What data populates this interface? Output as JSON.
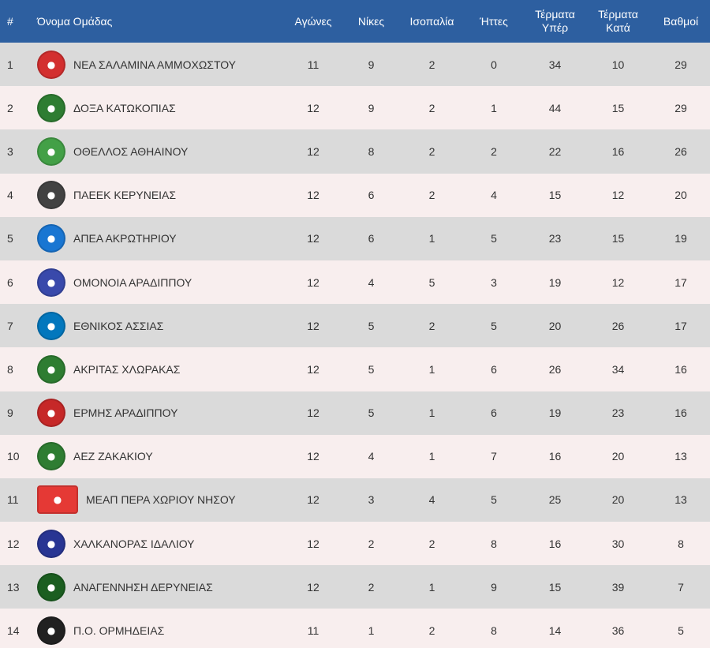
{
  "header": {
    "rank": "#",
    "team": "Όνομα Ομάδας",
    "played": "Αγώνες",
    "wins": "Νίκες",
    "draws": "Ισοπαλία",
    "losses": "Ήττες",
    "goals_for_line1": "Τέρματα",
    "goals_for_line2": "Υπέρ",
    "goals_against_line1": "Τέρματα",
    "goals_against_line2": "Κατά",
    "points": "Βαθμοί"
  },
  "rows": [
    {
      "rank": "1",
      "team": "ΝΕΑ ΣΑΛΑΜΙΝΑ ΑΜΜΟΧΩΣΤΟΥ",
      "logo_icon": "nea-salamina-crest-icon",
      "logo_color": "#d32f2f",
      "played": "11",
      "wins": "9",
      "draws": "2",
      "losses": "0",
      "gf": "34",
      "ga": "10",
      "pts": "29"
    },
    {
      "rank": "2",
      "team": "ΔΟΞΑ ΚΑΤΩΚΟΠΙΑΣ",
      "logo_icon": "doxa-crest-icon",
      "logo_color": "#2e7d32",
      "played": "12",
      "wins": "9",
      "draws": "2",
      "losses": "1",
      "gf": "44",
      "ga": "15",
      "pts": "29"
    },
    {
      "rank": "3",
      "team": "ΟΘΕΛΛΟΣ ΑΘΗΑΙΝΟΥ",
      "logo_icon": "othellos-crest-icon",
      "logo_color": "#43a047",
      "played": "12",
      "wins": "8",
      "draws": "2",
      "losses": "2",
      "gf": "22",
      "ga": "16",
      "pts": "26"
    },
    {
      "rank": "4",
      "team": "ΠΑΕΕΚ ΚΕΡΥΝΕΙΑΣ",
      "logo_icon": "paeek-crest-icon",
      "logo_color": "#424242",
      "played": "12",
      "wins": "6",
      "draws": "2",
      "losses": "4",
      "gf": "15",
      "ga": "12",
      "pts": "20"
    },
    {
      "rank": "5",
      "team": "ΑΠΕΑ ΑΚΡΩΤΗΡΙΟΥ",
      "logo_icon": "apea-crest-icon",
      "logo_color": "#1976d2",
      "played": "12",
      "wins": "6",
      "draws": "1",
      "losses": "5",
      "gf": "23",
      "ga": "15",
      "pts": "19"
    },
    {
      "rank": "6",
      "team": "ΟΜΟΝΟΙΑ ΑΡΑΔΙΠΠΟΥ",
      "logo_icon": "omonoia-crest-icon",
      "logo_color": "#3949ab",
      "played": "12",
      "wins": "4",
      "draws": "5",
      "losses": "3",
      "gf": "19",
      "ga": "12",
      "pts": "17"
    },
    {
      "rank": "7",
      "team": "ΕΘΝΙΚΟΣ ΑΣΣΙΑΣ",
      "logo_icon": "ethnikos-crest-icon",
      "logo_color": "#0277bd",
      "played": "12",
      "wins": "5",
      "draws": "2",
      "losses": "5",
      "gf": "20",
      "ga": "26",
      "pts": "17"
    },
    {
      "rank": "8",
      "team": "ΑΚΡΙΤΑΣ ΧΛΩΡΑΚΑΣ",
      "logo_icon": "akritas-crest-icon",
      "logo_color": "#2e7d32",
      "played": "12",
      "wins": "5",
      "draws": "1",
      "losses": "6",
      "gf": "26",
      "ga": "34",
      "pts": "16"
    },
    {
      "rank": "9",
      "team": "ΕΡΜΗΣ ΑΡΑΔΙΠΠΟΥ",
      "logo_icon": "ermis-crest-icon",
      "logo_color": "#c62828",
      "played": "12",
      "wins": "5",
      "draws": "1",
      "losses": "6",
      "gf": "19",
      "ga": "23",
      "pts": "16"
    },
    {
      "rank": "10",
      "team": "ΑΕΖ ΖΑΚΑΚΙΟΥ",
      "logo_icon": "aez-crest-icon",
      "logo_color": "#2e7d32",
      "played": "12",
      "wins": "4",
      "draws": "1",
      "losses": "7",
      "gf": "16",
      "ga": "20",
      "pts": "13"
    },
    {
      "rank": "11",
      "team": "ΜΕΑΠ ΠΕΡΑ ΧΩΡΙΟΥ ΝΗΣΟΥ",
      "logo_icon": "meap-crest-icon",
      "logo_color": "#e53935",
      "played": "12",
      "wins": "3",
      "draws": "4",
      "losses": "5",
      "gf": "25",
      "ga": "20",
      "pts": "13"
    },
    {
      "rank": "12",
      "team": "ΧΑΛΚΑΝΟΡΑΣ ΙΔΑΛΙΟΥ",
      "logo_icon": "chalkanoras-crest-icon",
      "logo_color": "#283593",
      "played": "12",
      "wins": "2",
      "draws": "2",
      "losses": "8",
      "gf": "16",
      "ga": "30",
      "pts": "8"
    },
    {
      "rank": "13",
      "team": "ΑΝΑΓΕΝΝΗΣΗ ΔΕΡΥΝΕΙΑΣ",
      "logo_icon": "anagennisi-crest-icon",
      "logo_color": "#1b5e20",
      "played": "12",
      "wins": "2",
      "draws": "1",
      "losses": "9",
      "gf": "15",
      "ga": "39",
      "pts": "7"
    },
    {
      "rank": "14",
      "team": "Π.Ο. ΟΡΜΗΔΕΙΑΣ",
      "logo_icon": "ormideia-crest-icon",
      "logo_color": "#212121",
      "played": "11",
      "wins": "1",
      "draws": "2",
      "losses": "8",
      "gf": "14",
      "ga": "36",
      "pts": "5"
    }
  ]
}
